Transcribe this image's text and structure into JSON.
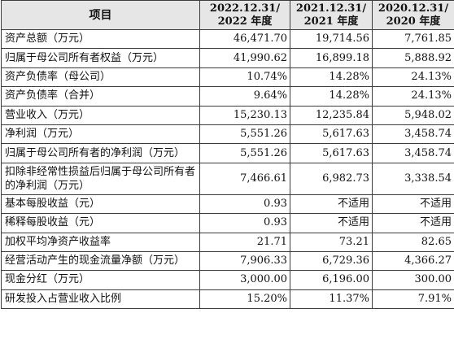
{
  "table": {
    "headers": {
      "item": "项目",
      "col1": {
        "line1": "2022.12.31/",
        "line2": "2022 年度"
      },
      "col2": {
        "line1": "2021.12.31/",
        "line2": "2021 年度"
      },
      "col3": {
        "line1": "2020.12.31/",
        "line2": "2020 年度"
      }
    },
    "rows": [
      {
        "label": "资产总额（万元）",
        "v2022": "46,471.70",
        "v2021": "19,714.56",
        "v2020": "7,761.85"
      },
      {
        "label": "归属于母公司所有者权益（万元）",
        "v2022": "41,990.62",
        "v2021": "16,899.18",
        "v2020": "5,888.92"
      },
      {
        "label": "资产负债率（母公司）",
        "v2022": "10.74%",
        "v2021": "14.28%",
        "v2020": "24.13%"
      },
      {
        "label": "资产负债率（合并）",
        "v2022": "9.64%",
        "v2021": "14.28%",
        "v2020": "24.13%"
      },
      {
        "label": "营业收入（万元）",
        "v2022": "15,230.13",
        "v2021": "12,235.84",
        "v2020": "5,948.02"
      },
      {
        "label": "净利润（万元）",
        "v2022": "5,551.26",
        "v2021": "5,617.63",
        "v2020": "3,458.74"
      },
      {
        "label": "归属于母公司所有者的净利润（万元）",
        "v2022": "5,551.26",
        "v2021": "5,617.63",
        "v2020": "3,458.74"
      },
      {
        "label": "扣除非经常性损益后归属于母公司所有者的净利润（万元）",
        "v2022": "7,466.61",
        "v2021": "6,982.73",
        "v2020": "3,338.54"
      },
      {
        "label": "基本每股收益（元）",
        "v2022": "0.93",
        "v2021": "不适用",
        "v2020": "不适用"
      },
      {
        "label": "稀释每股收益（元）",
        "v2022": "0.93",
        "v2021": "不适用",
        "v2020": "不适用"
      },
      {
        "label": "加权平均净资产收益率",
        "v2022": "21.71",
        "v2021": "73.21",
        "v2020": "82.65"
      },
      {
        "label": "经营活动产生的现金流量净额（万元）",
        "v2022": "7,906.33",
        "v2021": "6,729.36",
        "v2020": "4,366.27"
      },
      {
        "label": "现金分红（万元）",
        "v2022": "3,000.00",
        "v2021": "6,196.00",
        "v2020": "300.00"
      },
      {
        "label": "研发投入占营业收入比例",
        "v2022": "15.20%",
        "v2021": "11.37%",
        "v2020": "7.91%"
      }
    ]
  },
  "colors": {
    "header_bg": "#e6e6e6",
    "border": "#3c3c3c",
    "text": "#111111"
  }
}
